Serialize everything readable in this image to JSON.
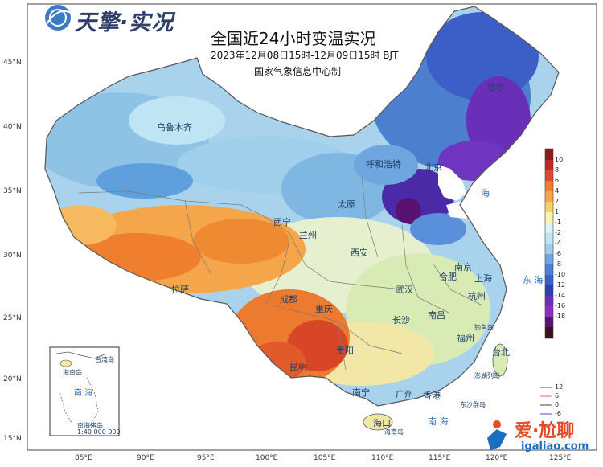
{
  "header": {
    "logo_text": "天擎·实况",
    "title": "全国近24小时变温实况",
    "time_range": "2023年12月08日15时-12月09日15时  BJT",
    "source": "国家气象信息中心制"
  },
  "axes": {
    "latitudes": [
      "45°N",
      "40°N",
      "35°N",
      "30°N",
      "25°N",
      "20°N",
      "15°N"
    ],
    "longitudes": [
      "85°E",
      "90°E",
      "95°E",
      "100°E",
      "105°E",
      "110°E",
      "115°E",
      "120°E",
      "125°E"
    ]
  },
  "cities": [
    "乌鲁木齐",
    "呼和浩特",
    "北京",
    "哈尔",
    "太原",
    "西宁",
    "兰州",
    "西安",
    "拉萨",
    "成都",
    "重庆",
    "武汉",
    "合肥",
    "南京",
    "上海",
    "杭州",
    "长沙",
    "南昌",
    "福州",
    "贵阳",
    "昆明",
    "南宁",
    "广州",
    "香港",
    "台北",
    "海口"
  ],
  "seas": [
    "海",
    "东 海",
    "南 海"
  ],
  "islands": [
    "钓鱼岛",
    "澎湖列岛",
    "东沙群岛",
    "海南岛"
  ],
  "inset": {
    "labels": [
      "海南岛",
      "台湾岛",
      "南 海",
      "南海诸岛",
      "1:40 000 000"
    ]
  },
  "legend": {
    "labels": [
      "10",
      "8",
      "6",
      "4",
      "2",
      "1",
      "-1",
      "-2",
      "-4",
      "-6",
      "-8",
      "-10",
      "-12",
      "-14",
      "-16",
      "-18",
      "",
      ""
    ],
    "colors": [
      "#8b1a1a",
      "#c0272d",
      "#e2452f",
      "#f07c2f",
      "#f5a64a",
      "#f6d365",
      "#f8f3b5",
      "#dff0f7",
      "#bfe4f3",
      "#9fcfea",
      "#6fa6e0",
      "#4d7fcf",
      "#3b5fc7",
      "#2e3fb5",
      "#6a2fb8",
      "#8a2fbf",
      "#5a1270",
      "#3d0f1a"
    ]
  },
  "line_legend": {
    "labels": [
      "12",
      "6",
      "0",
      "-6"
    ],
    "colors": [
      "#e06666",
      "#e79a9a",
      "#7f7f9a",
      "#8a88c8"
    ]
  },
  "watermark": {
    "text": "爱·尬聊",
    "domain": "igaliao.com"
  }
}
